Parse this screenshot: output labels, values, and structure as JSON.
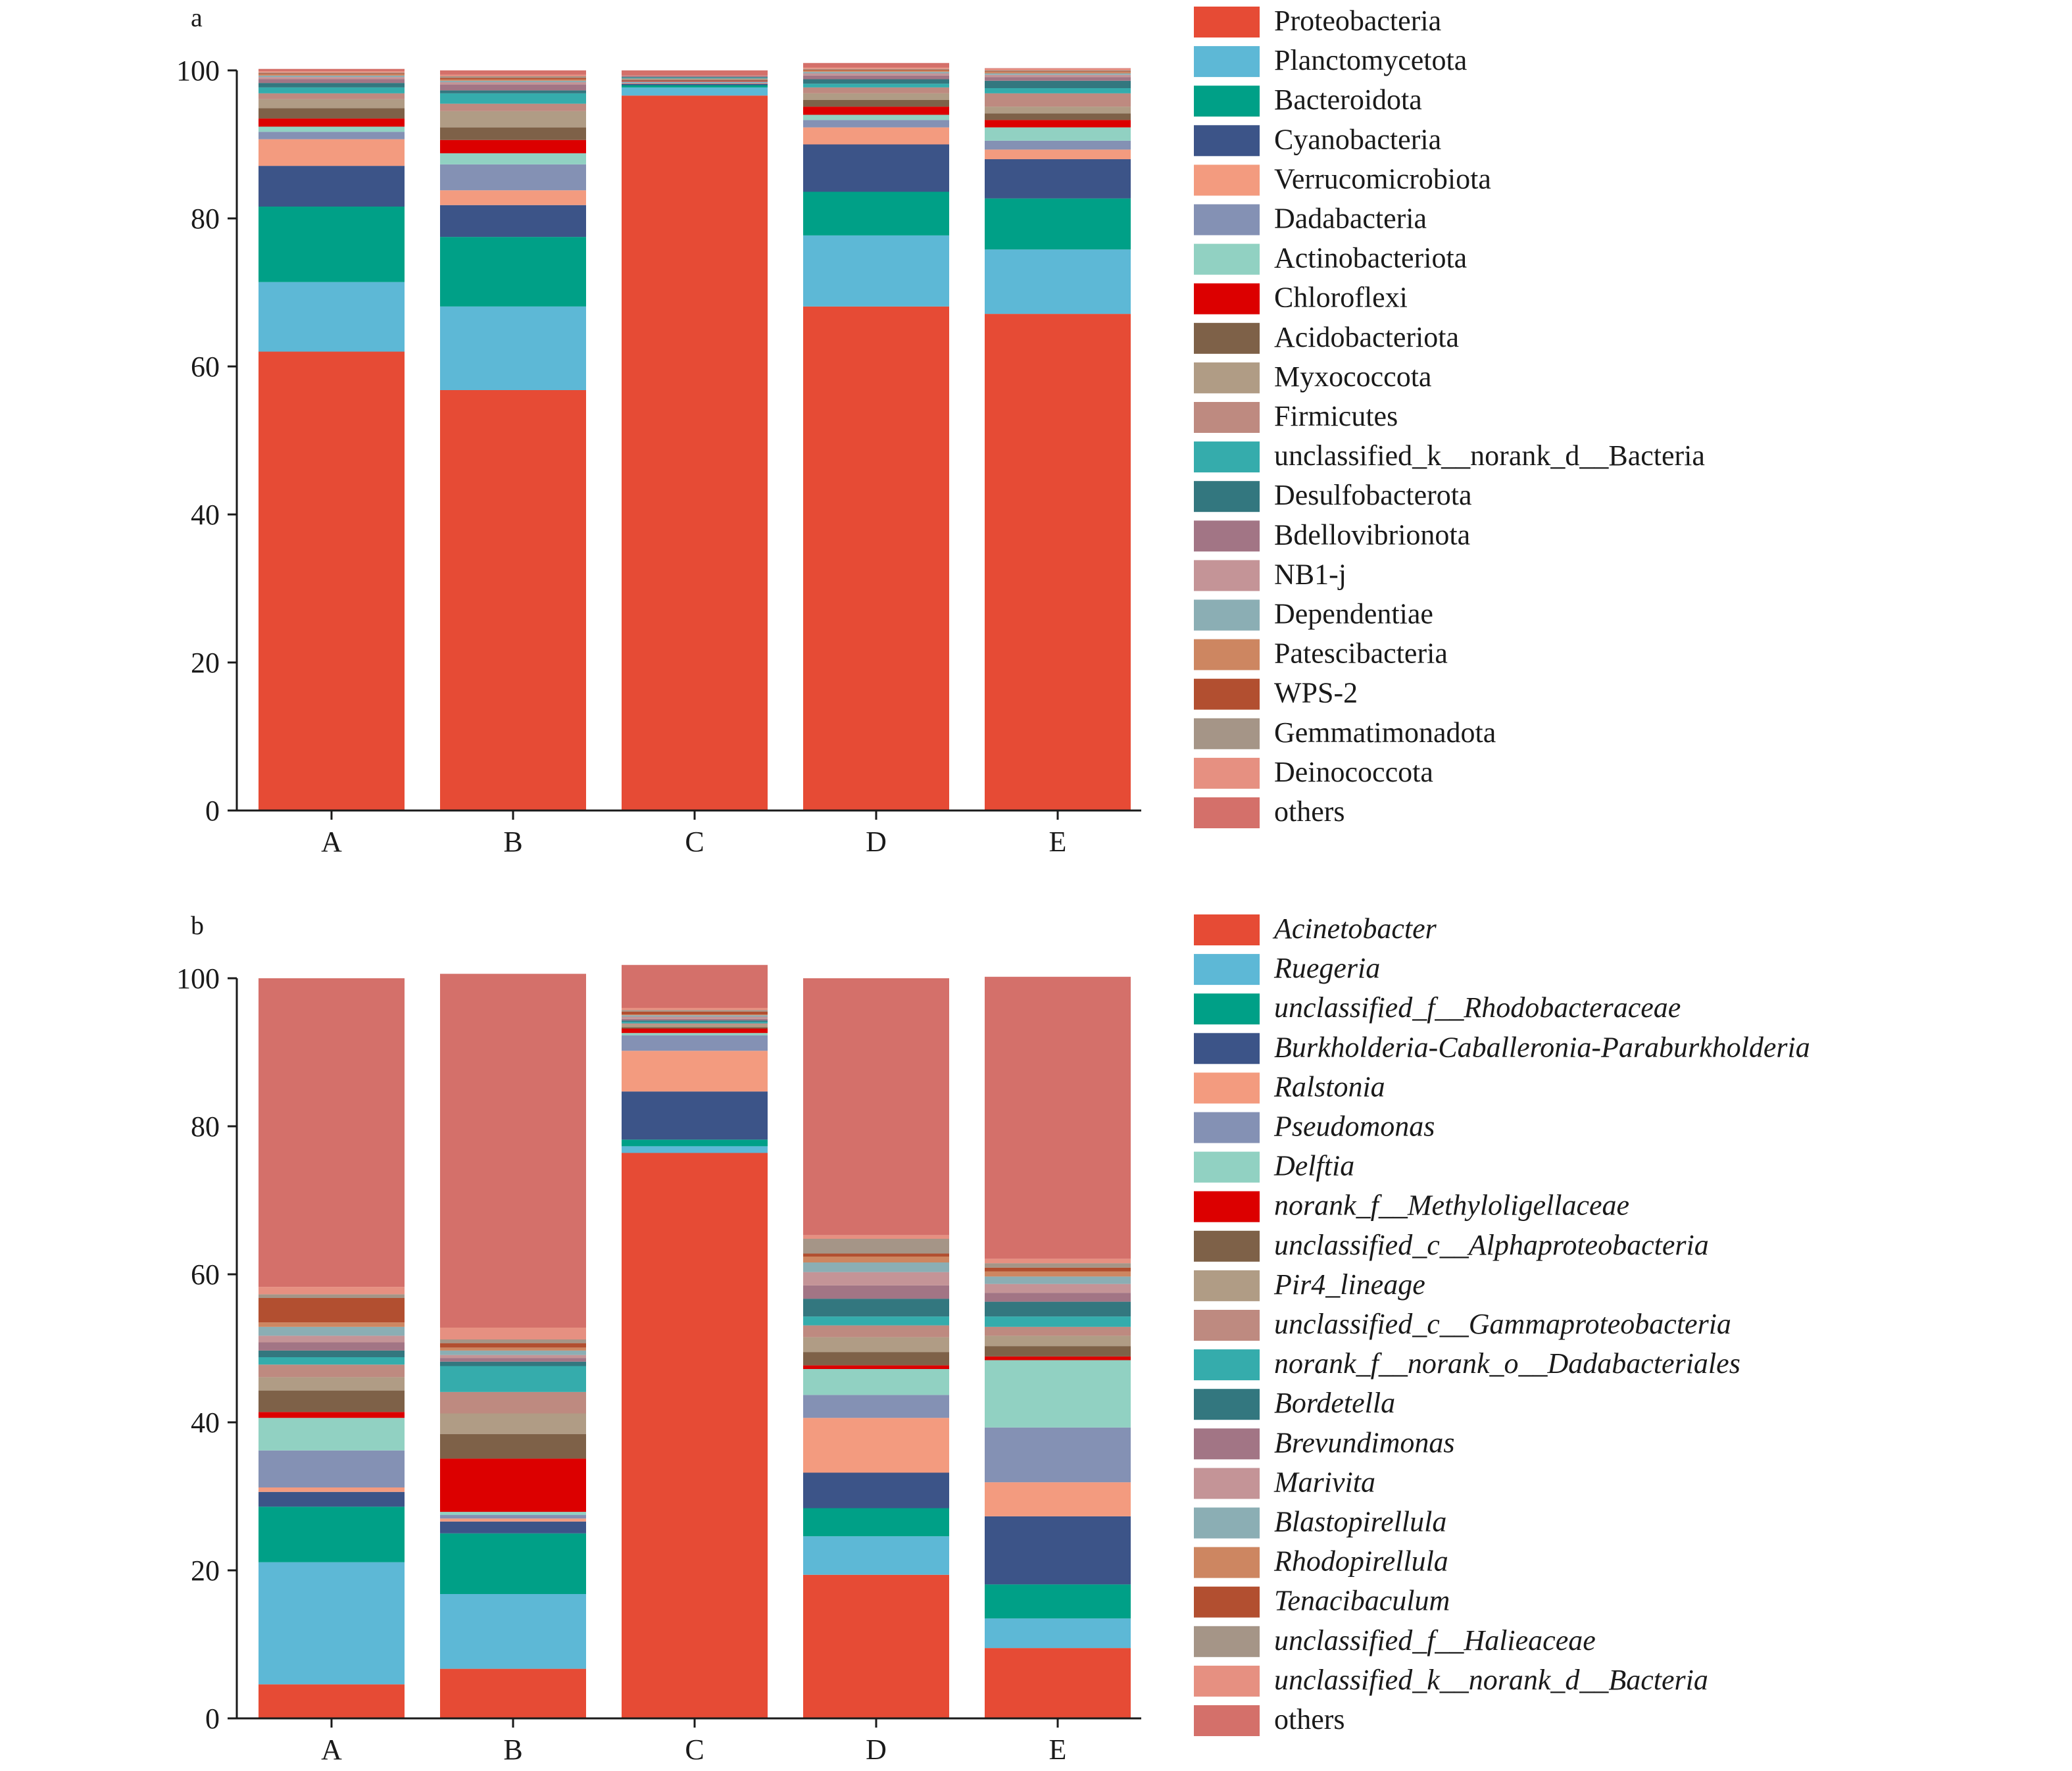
{
  "chart_data": [
    {
      "type": "bar",
      "stacked": true,
      "panel_label": "a",
      "categories": [
        "A",
        "B",
        "C",
        "D",
        "E"
      ],
      "ylim": [
        0,
        100
      ],
      "yticks": [
        "0",
        "20",
        "40",
        "60",
        "80",
        "100"
      ],
      "legend_italic": false,
      "series": [
        {
          "name": "Proteobacteria",
          "color": "#E64B35",
          "values": [
            62.0,
            56.8,
            96.6,
            68.1,
            67.1
          ]
        },
        {
          "name": "Planctomycetota",
          "color": "#5DB8D6",
          "values": [
            9.4,
            11.3,
            1.1,
            9.6,
            8.7
          ]
        },
        {
          "name": "Bacteroidota",
          "color": "#00A087",
          "values": [
            10.2,
            9.4,
            0.3,
            5.9,
            6.9
          ]
        },
        {
          "name": "Cyanobacteria",
          "color": "#3C5488",
          "values": [
            5.5,
            4.3,
            0.2,
            6.4,
            5.3
          ]
        },
        {
          "name": "Verrucomicrobiota",
          "color": "#F39B7F",
          "values": [
            3.6,
            2.0,
            0.1,
            2.3,
            1.3
          ]
        },
        {
          "name": "Dadabacteria",
          "color": "#8491B4",
          "values": [
            1.0,
            3.5,
            0.1,
            1.0,
            1.2
          ]
        },
        {
          "name": "Actinobacteriota",
          "color": "#91D1C2",
          "values": [
            0.7,
            1.5,
            0.1,
            0.7,
            1.8
          ]
        },
        {
          "name": "Chloroflexi",
          "color": "#DC0000",
          "values": [
            1.1,
            1.8,
            0.1,
            1.1,
            1.0
          ]
        },
        {
          "name": "Acidobacteriota",
          "color": "#7E6148",
          "values": [
            1.4,
            1.7,
            0.1,
            0.9,
            0.9
          ]
        },
        {
          "name": "Myxococcota",
          "color": "#B09C85",
          "values": [
            1.2,
            2.2,
            0.1,
            0.9,
            0.9
          ]
        },
        {
          "name": "Firmicutes",
          "color": "#BE8A80",
          "values": [
            0.8,
            1.0,
            0.1,
            0.8,
            1.8
          ]
        },
        {
          "name": "unclassified_k__norank_d__Bacteria",
          "color": "#35ACAC",
          "values": [
            0.8,
            1.4,
            0.1,
            0.5,
            0.7
          ]
        },
        {
          "name": "Desulfobacterota",
          "color": "#33777F",
          "values": [
            0.6,
            0.4,
            0.1,
            0.6,
            1.0
          ]
        },
        {
          "name": "Bdellovibrionota",
          "color": "#A27585",
          "values": [
            0.5,
            0.8,
            0.1,
            0.5,
            0.5
          ]
        },
        {
          "name": "NB1-j",
          "color": "#C49497",
          "values": [
            0.3,
            0.3,
            0.1,
            0.3,
            0.3
          ]
        },
        {
          "name": "Dependentiae",
          "color": "#8BAEB4",
          "values": [
            0.2,
            0.2,
            0.0,
            0.2,
            0.2
          ]
        },
        {
          "name": "Patescibacteria",
          "color": "#CD8661",
          "values": [
            0.2,
            0.2,
            0.0,
            0.2,
            0.2
          ]
        },
        {
          "name": "WPS-2",
          "color": "#B24F30",
          "values": [
            0.1,
            0.2,
            0.0,
            0.1,
            0.1
          ]
        },
        {
          "name": "Gemmatimonadota",
          "color": "#A59587",
          "values": [
            0.1,
            0.2,
            0.0,
            0.1,
            0.1
          ]
        },
        {
          "name": "Deinococcota",
          "color": "#E69081",
          "values": [
            0.2,
            0.2,
            0.0,
            0.2,
            0.2
          ]
        },
        {
          "name": "others",
          "color": "#D4706A",
          "values": [
            0.3,
            0.6,
            0.7,
            0.6,
            0.1
          ]
        }
      ]
    },
    {
      "type": "bar",
      "stacked": true,
      "panel_label": "b",
      "categories": [
        "A",
        "B",
        "C",
        "D",
        "E"
      ],
      "ylim": [
        0,
        100
      ],
      "yticks": [
        "0",
        "20",
        "40",
        "60",
        "80",
        "100"
      ],
      "legend_italic": true,
      "series": [
        {
          "name": "Acinetobacter",
          "color": "#E64B35",
          "values": [
            4.6,
            6.7,
            76.4,
            19.4,
            9.5
          ]
        },
        {
          "name": "Ruegeria",
          "color": "#5DB8D6",
          "values": [
            16.5,
            10.1,
            0.9,
            5.2,
            4.0
          ]
        },
        {
          "name": "unclassified_f__Rhodobacteraceae",
          "color": "#00A087",
          "values": [
            7.5,
            8.2,
            0.9,
            3.8,
            4.6
          ]
        },
        {
          "name": "Burkholderia-Caballeronia-Paraburkholderia",
          "color": "#3C5488",
          "values": [
            2.0,
            1.6,
            6.5,
            4.8,
            9.2
          ]
        },
        {
          "name": "Ralstonia",
          "color": "#F39B7F",
          "values": [
            0.6,
            0.4,
            5.5,
            7.4,
            4.6
          ]
        },
        {
          "name": "Pseudomonas",
          "color": "#8491B4",
          "values": [
            5.0,
            0.5,
            2.1,
            3.1,
            7.4
          ]
        },
        {
          "name": "Delftia",
          "color": "#91D1C2",
          "values": [
            4.4,
            0.4,
            0.3,
            3.5,
            9.1
          ]
        },
        {
          "name": "norank_f__Methyloligellaceae",
          "color": "#DC0000",
          "values": [
            0.8,
            7.2,
            0.6,
            0.5,
            0.5
          ]
        },
        {
          "name": "unclassified_c__Alphaproteobacteria",
          "color": "#7E6148",
          "values": [
            2.9,
            3.3,
            0.2,
            1.8,
            1.4
          ]
        },
        {
          "name": "Pir4_lineage",
          "color": "#B09C85",
          "values": [
            1.8,
            2.8,
            0.3,
            2.0,
            1.4
          ]
        },
        {
          "name": "unclassified_c__Gammaproteobacteria",
          "color": "#BE8A80",
          "values": [
            1.7,
            2.9,
            0.2,
            1.6,
            1.2
          ]
        },
        {
          "name": "norank_f__norank_o__Dadabacteriales",
          "color": "#35ACAC",
          "values": [
            1.0,
            3.5,
            0.2,
            1.2,
            1.4
          ]
        },
        {
          "name": "Bordetella",
          "color": "#33777F",
          "values": [
            0.9,
            0.6,
            0.2,
            2.4,
            2.0
          ]
        },
        {
          "name": "Brevundimonas",
          "color": "#A27585",
          "values": [
            1.1,
            0.5,
            0.2,
            1.8,
            1.2
          ]
        },
        {
          "name": "Marivita",
          "color": "#C49497",
          "values": [
            0.9,
            0.4,
            0.3,
            1.8,
            1.2
          ]
        },
        {
          "name": "Blastopirellula",
          "color": "#8BAEB4",
          "values": [
            1.2,
            0.6,
            0.2,
            1.3,
            1.0
          ]
        },
        {
          "name": "Rhodopirellula",
          "color": "#CD8661",
          "values": [
            0.6,
            0.4,
            0.1,
            0.8,
            0.7
          ]
        },
        {
          "name": "Tenacibaculum",
          "color": "#B24F30",
          "values": [
            3.3,
            0.6,
            0.4,
            0.4,
            0.5
          ]
        },
        {
          "name": "unclassified_f__Halieaceae",
          "color": "#A59587",
          "values": [
            0.5,
            0.5,
            0.2,
            2.0,
            0.6
          ]
        },
        {
          "name": "unclassified_k__norank_d__Bacteria",
          "color": "#E69081",
          "values": [
            1.0,
            1.6,
            0.3,
            0.5,
            0.6
          ]
        },
        {
          "name": "others",
          "color": "#D4706A",
          "values": [
            41.7,
            47.8,
            5.8,
            34.7,
            38.1
          ]
        }
      ]
    }
  ]
}
